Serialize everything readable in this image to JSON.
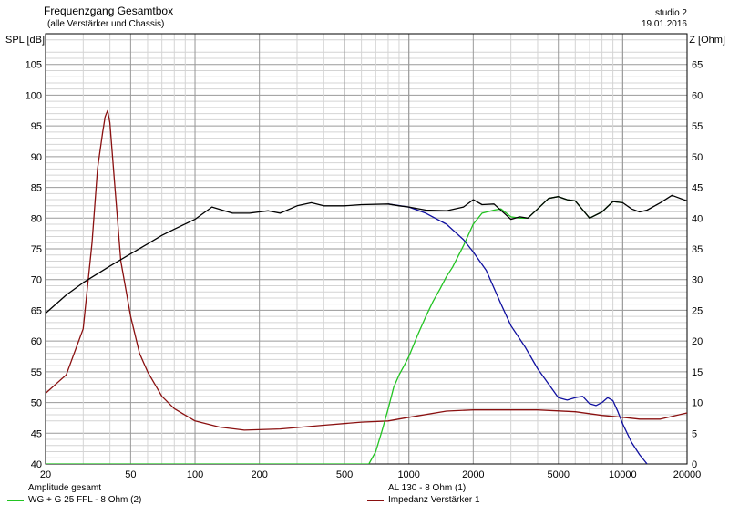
{
  "header": {
    "title": "Frequenzgang Gesamtbox",
    "subtitle": "(alle Verstärker und Chassis)",
    "right_title": "studio 2",
    "date": "19.01.2016"
  },
  "chart_data": {
    "type": "line",
    "title": "Frequenzgang Gesamtbox",
    "subtitle": "(alle Verstärker und Chassis)",
    "ylabel": "SPL [dB]",
    "y2label": "Z [Ohm]",
    "xscale": "log",
    "xlim": [
      20,
      20000
    ],
    "ylim": [
      40,
      110
    ],
    "y2lim": [
      0,
      70
    ],
    "xticks": [
      20,
      50,
      100,
      200,
      500,
      1000,
      2000,
      5000,
      10000,
      20000
    ],
    "yticks": [
      40,
      45,
      50,
      55,
      60,
      65,
      70,
      75,
      80,
      85,
      90,
      95,
      100,
      105
    ],
    "y2ticks": [
      0,
      5,
      10,
      15,
      20,
      25,
      30,
      35,
      40,
      45,
      50,
      55,
      60,
      65
    ],
    "grid": true,
    "legend_position": "bottom",
    "series": [
      {
        "name": "Amplitude gesamt",
        "color": "#000000",
        "axis": "left",
        "x": [
          20,
          25,
          30,
          40,
          50,
          60,
          70,
          80,
          100,
          120,
          150,
          180,
          220,
          250,
          300,
          350,
          400,
          500,
          600,
          800,
          900,
          1000,
          1200,
          1500,
          1800,
          2000,
          2200,
          2500,
          3000,
          3300,
          3600,
          4000,
          4500,
          5000,
          5500,
          6000,
          7000,
          8000,
          9000,
          10000,
          11000,
          12000,
          13000,
          15000,
          17000,
          20000
        ],
        "y": [
          64.5,
          67.5,
          69.5,
          72.2,
          74.2,
          75.8,
          77.2,
          78.2,
          79.8,
          81.8,
          80.8,
          80.8,
          81.2,
          80.8,
          82.0,
          82.5,
          82.0,
          82.0,
          82.2,
          82.3,
          82.0,
          81.8,
          81.3,
          81.2,
          81.8,
          83.0,
          82.2,
          82.3,
          79.8,
          80.2,
          80.0,
          81.5,
          83.2,
          83.5,
          83.0,
          82.8,
          80.0,
          81.0,
          82.7,
          82.5,
          81.5,
          81.0,
          81.3,
          82.5,
          83.7,
          82.8
        ]
      },
      {
        "name": "AL 130 - 8 Ohm (1)",
        "color": "#1010a0",
        "axis": "left",
        "x": [
          800,
          1000,
          1200,
          1500,
          1800,
          2000,
          2300,
          2700,
          3000,
          3500,
          4000,
          4500,
          5000,
          5500,
          6000,
          6500,
          7000,
          7500,
          8000,
          8500,
          9000,
          9500,
          10000,
          11000,
          12000,
          13000
        ],
        "y": [
          82.3,
          81.8,
          80.8,
          79.0,
          76.5,
          74.5,
          71.5,
          66.0,
          62.5,
          59.0,
          55.5,
          53.0,
          50.8,
          50.4,
          50.8,
          51.0,
          49.8,
          49.5,
          50.0,
          50.8,
          50.3,
          48.5,
          46.5,
          43.5,
          41.5,
          40.0
        ]
      },
      {
        "name": "WG + G 25 FFL - 8 Ohm (2)",
        "color": "#22c422",
        "axis": "left",
        "x": [
          20,
          100,
          300,
          650,
          700,
          750,
          800,
          850,
          900,
          950,
          1000,
          1100,
          1200,
          1300,
          1400,
          1500,
          1600,
          1800,
          2000,
          2200,
          2500,
          2700,
          3000,
          3300,
          3600,
          4000,
          4500,
          5000,
          5500,
          6000,
          7000,
          8000,
          9000,
          10000
        ],
        "y": [
          40,
          40,
          40,
          40,
          42.0,
          45.5,
          49.0,
          52.5,
          54.5,
          56.0,
          57.5,
          61.0,
          64.0,
          66.5,
          68.5,
          70.5,
          72.0,
          75.5,
          79.0,
          80.8,
          81.3,
          81.5,
          80.2,
          80.0,
          80.0,
          81.5,
          83.2,
          83.5,
          83.0,
          82.8,
          80.0,
          81.0,
          82.7,
          82.5
        ]
      },
      {
        "name": "Impedanz Verstärker 1",
        "color": "#8a1010",
        "axis": "right",
        "x": [
          20,
          25,
          30,
          33,
          35,
          37,
          38,
          39,
          40,
          42,
          45,
          50,
          55,
          60,
          70,
          80,
          100,
          130,
          170,
          250,
          400,
          600,
          800,
          1000,
          1500,
          2000,
          3000,
          4000,
          6000,
          8000,
          10000,
          12000,
          15000,
          20000
        ],
        "y": [
          11.5,
          14.5,
          22.0,
          36.0,
          48.0,
          54.0,
          56.5,
          57.5,
          55.5,
          46.0,
          33.0,
          24.0,
          18.0,
          15.0,
          11.0,
          9.0,
          7.0,
          6.0,
          5.5,
          5.7,
          6.3,
          6.8,
          7.0,
          7.6,
          8.6,
          8.8,
          8.8,
          8.8,
          8.5,
          7.9,
          7.6,
          7.3,
          7.3,
          8.3
        ]
      }
    ]
  }
}
